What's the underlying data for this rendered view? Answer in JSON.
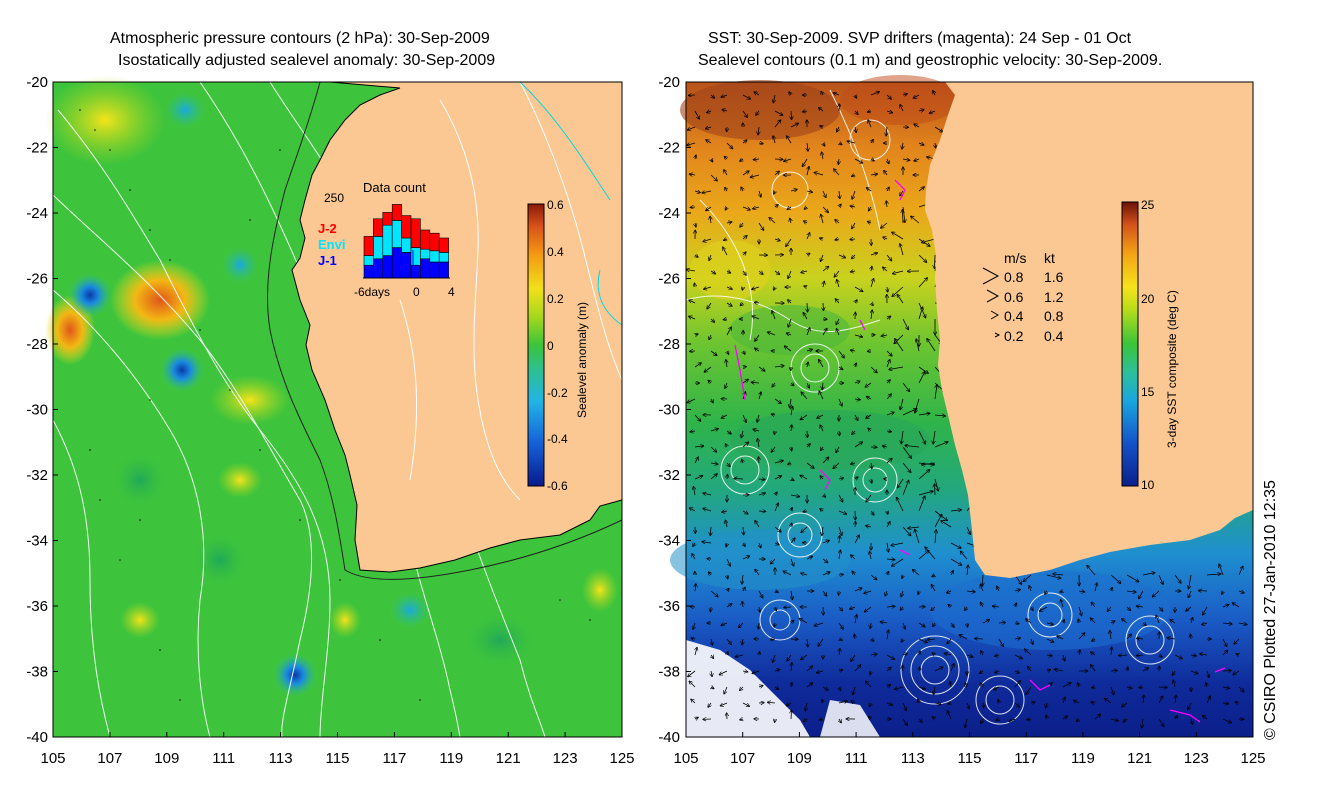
{
  "left_panel": {
    "title_line1": "Atmospheric pressure contours (2 hPa): 30-Sep-2009",
    "title_line2": "Isostatically adjusted sealevel anomaly: 30-Sep-2009",
    "colorbar": {
      "label": "Sealevel anomaly (m)",
      "ticks": [
        "0.6",
        "0.4",
        "0.2",
        "0",
        "-0.2",
        "-0.4",
        "-0.6"
      ]
    },
    "inset": {
      "title": "Data count",
      "y_max_label": "250",
      "x_labels": [
        "-6days",
        "0",
        "4"
      ],
      "legend": [
        {
          "label": "J-2",
          "color": "#ff0000"
        },
        {
          "label": "Envi",
          "color": "#00e5ff"
        },
        {
          "label": "J-1",
          "color": "#0000ff"
        }
      ],
      "bars": [
        {
          "j1": 40,
          "envi": 30,
          "j2": 60
        },
        {
          "j1": 60,
          "envi": 70,
          "j2": 55
        },
        {
          "j1": 70,
          "envi": 95,
          "j2": 40
        },
        {
          "j1": 95,
          "envi": 85,
          "j2": 50
        },
        {
          "j1": 80,
          "envi": 45,
          "j2": 70
        },
        {
          "j1": 40,
          "envi": 55,
          "j2": 90
        },
        {
          "j1": 60,
          "envi": 30,
          "j2": 60
        },
        {
          "j1": 50,
          "envi": 35,
          "j2": 55
        },
        {
          "j1": 50,
          "envi": 30,
          "j2": 45
        }
      ]
    }
  },
  "right_panel": {
    "title_line1": "SST: 30-Sep-2009. SVP drifters (magenta): 24 Sep - 01 Oct",
    "title_line2": "Sealevel contours (0.1 m) and geostrophic velocity: 30-Sep-2009.",
    "colorbar": {
      "label": "3-day SST composite (deg C)",
      "ticks": [
        "25",
        "20",
        "15",
        "10"
      ]
    },
    "velocity_legend": {
      "header_ms": "m/s",
      "header_kt": "kt",
      "rows": [
        {
          "ms": "0.8",
          "kt": "1.6"
        },
        {
          "ms": "0.6",
          "kt": "1.2"
        },
        {
          "ms": "0.4",
          "kt": "0.8"
        },
        {
          "ms": "0.2",
          "kt": "0.4"
        }
      ]
    }
  },
  "axes": {
    "lat_labels": [
      "-20",
      "-22",
      "-24",
      "-26",
      "-28",
      "-30",
      "-32",
      "-34",
      "-36",
      "-38",
      "-40"
    ],
    "lon_labels": [
      "105",
      "107",
      "109",
      "111",
      "113",
      "115",
      "117",
      "119",
      "121",
      "123",
      "125"
    ]
  },
  "copyright": "© CSIRO Plotted 27-Jan-2010 12:35",
  "colors": {
    "land": "#fbc894",
    "coast": "#000000",
    "drifter": "#ff00ff"
  }
}
